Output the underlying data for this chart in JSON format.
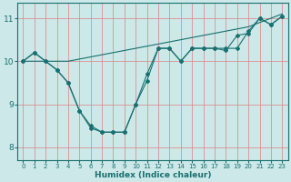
{
  "xlabel": "Humidex (Indice chaleur)",
  "background_color": "#cce8e8",
  "grid_color": "#f0a0a0",
  "line_color": "#1a7070",
  "xlim": [
    -0.5,
    23.5
  ],
  "ylim": [
    7.7,
    11.35
  ],
  "yticks": [
    8,
    9,
    10,
    11
  ],
  "xtick_labels": [
    "0",
    "1",
    "2",
    "3",
    "4",
    "5",
    "6",
    "7",
    "8",
    "9",
    "10",
    "11",
    "12",
    "13",
    "14",
    "15",
    "16",
    "17",
    "18",
    "19",
    "20",
    "21",
    "22",
    "23"
  ],
  "series": [
    [
      10.0,
      10.2,
      10.0,
      9.8,
      9.5,
      8.85,
      8.45,
      8.35,
      8.35,
      8.35,
      9.0,
      9.7,
      10.3,
      10.3,
      10.0,
      10.3,
      10.3,
      10.3,
      10.3,
      10.3,
      10.7,
      11.0,
      10.85,
      11.05
    ],
    [
      10.0,
      10.0,
      10.0,
      10.0,
      10.0,
      10.05,
      10.1,
      10.15,
      10.2,
      10.25,
      10.3,
      10.35,
      10.4,
      10.45,
      10.5,
      10.55,
      10.6,
      10.65,
      10.7,
      10.75,
      10.8,
      10.9,
      11.0,
      11.1
    ],
    [
      10.0,
      10.2,
      10.0,
      9.8,
      9.5,
      8.85,
      8.5,
      8.35,
      8.35,
      8.35,
      9.0,
      9.55,
      10.3,
      10.3,
      10.0,
      10.3,
      10.3,
      10.3,
      10.25,
      10.6,
      10.65,
      11.0,
      10.85,
      11.05
    ]
  ]
}
